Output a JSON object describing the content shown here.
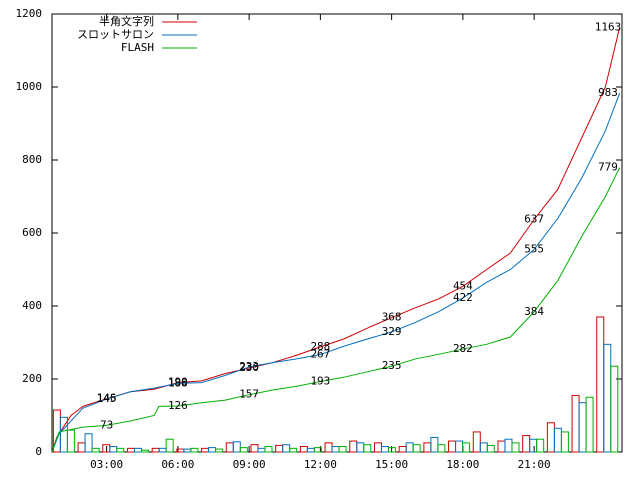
{
  "chart_data": {
    "type": "line",
    "xlim": [
      0.7,
      24.7
    ],
    "ylim": [
      0,
      1200
    ],
    "xticks": [
      {
        "value": 3,
        "label": "03:00"
      },
      {
        "value": 6,
        "label": "06:00"
      },
      {
        "value": 9,
        "label": "09:00"
      },
      {
        "value": 12,
        "label": "12:00"
      },
      {
        "value": 15,
        "label": "15:00"
      },
      {
        "value": 18,
        "label": "18:00"
      },
      {
        "value": 21,
        "label": "21:00"
      }
    ],
    "yticks": [
      0,
      200,
      400,
      600,
      800,
      1000,
      1200
    ],
    "legend": "top-left",
    "series": [
      {
        "name": "半角文字列",
        "color": "#d00000",
        "x": [
          0.7,
          0.9,
          1.5,
          2,
          3,
          4,
          5,
          6,
          7,
          8,
          9,
          10,
          11,
          12,
          13,
          14,
          15,
          16,
          17,
          18,
          19,
          20,
          21,
          22,
          23,
          24,
          24.6
        ],
        "values": [
          0,
          40,
          100,
          125,
          146,
          165,
          172,
          190,
          195,
          215,
          230,
          245,
          265,
          288,
          310,
          340,
          368,
          395,
          420,
          454,
          500,
          545,
          637,
          720,
          860,
          1000,
          1163
        ],
        "labels": {
          "x": [
            3,
            6,
            9,
            12,
            15,
            18,
            21,
            24.6
          ],
          "values": [
            146,
            190,
            230,
            288,
            368,
            454,
            637,
            1163
          ]
        },
        "bar_x": [
          1.2,
          2.24,
          3.28,
          4.32,
          5.36,
          6.4,
          7.44,
          8.48,
          9.52,
          10.56,
          11.6,
          12.64,
          13.68,
          14.72,
          15.76,
          16.8,
          17.84,
          18.88,
          19.92,
          20.96,
          22,
          23.04,
          24.08
        ],
        "bars": [
          115,
          25,
          20,
          10,
          10,
          8,
          10,
          25,
          20,
          18,
          15,
          25,
          30,
          25,
          15,
          25,
          30,
          55,
          30,
          45,
          80,
          155,
          370
        ]
      },
      {
        "name": "スロットサロン",
        "color": "#0070c0",
        "x": [
          0.7,
          1,
          2,
          3,
          4,
          5,
          6,
          7,
          8,
          9,
          10,
          11,
          12,
          13,
          14,
          15,
          16,
          17,
          18,
          19,
          20,
          21,
          22,
          23,
          24,
          24.6
        ],
        "values": [
          0,
          50,
          120,
          145,
          165,
          175,
          188,
          190,
          210,
          233,
          245,
          255,
          267,
          290,
          310,
          329,
          355,
          385,
          422,
          465,
          500,
          555,
          640,
          750,
          880,
          983
        ],
        "labels": {
          "x": [
            3,
            6,
            9,
            12,
            15,
            18,
            21,
            24.6
          ],
          "values": [
            145,
            188,
            233,
            267,
            329,
            422,
            555,
            983
          ]
        },
        "bar_x": [
          1.2,
          2.24,
          3.28,
          4.32,
          5.36,
          6.4,
          7.44,
          8.48,
          9.52,
          10.56,
          11.6,
          12.64,
          13.68,
          14.72,
          15.76,
          16.8,
          17.84,
          18.88,
          19.92,
          20.96,
          22,
          23.04,
          24.08
        ],
        "bars": [
          95,
          50,
          15,
          10,
          10,
          8,
          12,
          28,
          10,
          20,
          10,
          15,
          25,
          15,
          25,
          40,
          30,
          25,
          35,
          35,
          65,
          135,
          295
        ]
      },
      {
        "name": "FLASH",
        "color": "#00b000",
        "x": [
          0.7,
          1,
          2,
          3,
          4,
          5,
          5.2,
          6,
          7,
          8,
          9,
          10,
          11,
          12,
          13,
          14,
          15,
          16,
          17,
          18,
          19,
          20,
          21,
          22,
          23,
          24,
          24.6
        ],
        "values": [
          0,
          55,
          68,
          73,
          85,
          100,
          125,
          126,
          135,
          142,
          157,
          170,
          180,
          193,
          205,
          220,
          235,
          255,
          268,
          282,
          295,
          315,
          384,
          470,
          590,
          700,
          779
        ],
        "labels": {
          "x": [
            3,
            6,
            9,
            12,
            15,
            18,
            21,
            24.6
          ],
          "values": [
            73,
            126,
            157,
            193,
            235,
            282,
            384,
            779
          ]
        },
        "bar_x": [
          1.2,
          2.24,
          3.28,
          4.32,
          5.36,
          6.4,
          7.44,
          8.48,
          9.52,
          10.56,
          11.6,
          12.64,
          13.68,
          14.72,
          15.76,
          16.8,
          17.84,
          18.88,
          19.92,
          20.96,
          22,
          23.04,
          24.08
        ],
        "bars": [
          60,
          10,
          10,
          5,
          35,
          10,
          8,
          12,
          15,
          10,
          12,
          15,
          20,
          12,
          20,
          20,
          25,
          18,
          25,
          35,
          55,
          150,
          235
        ]
      }
    ]
  }
}
